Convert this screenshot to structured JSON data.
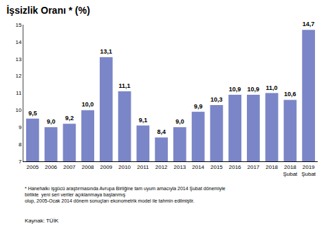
{
  "chart_data": {
    "type": "bar",
    "title": "İşsizlik Oranı * (%)",
    "categories": [
      "2005",
      "2006",
      "2007",
      "2008",
      "2009",
      "2010",
      "2011",
      "2012",
      "2013",
      "2014",
      "2015",
      "2016",
      "2017",
      "2018",
      "2018\nŞubat",
      "2019\nŞubat"
    ],
    "values": [
      9.5,
      9.0,
      9.2,
      10.0,
      13.1,
      11.1,
      9.1,
      8.4,
      9.0,
      9.9,
      10.3,
      10.9,
      10.9,
      11.0,
      10.6,
      14.7
    ],
    "value_labels": [
      "9,5",
      "9,0",
      "9,2",
      "10,0",
      "13,1",
      "11,1",
      "9,1",
      "8,4",
      "9,0",
      "9,9",
      "10,3",
      "10,9",
      "10,9",
      "11,0",
      "10,6",
      "14,7"
    ],
    "data_labels": true,
    "color": "#7B86C8",
    "ylim": [
      7,
      15
    ],
    "yticks": [
      7,
      8,
      9,
      10,
      11,
      12,
      13,
      14,
      15
    ],
    "grid": false,
    "annotations": [
      "* Hanehalkı işgücü araştırmasında Avrupa Birliğine tam uyum amacıyla 2014 Şubat dönemiyle birlikte  yeni seri veriler açıklanmaya başlanmış\nolup, 2005-Ocak 2014 dönem sonuçları ekonometrik model ile tahmin edilmiştir.",
      "Kaynak: TÜİK"
    ]
  }
}
